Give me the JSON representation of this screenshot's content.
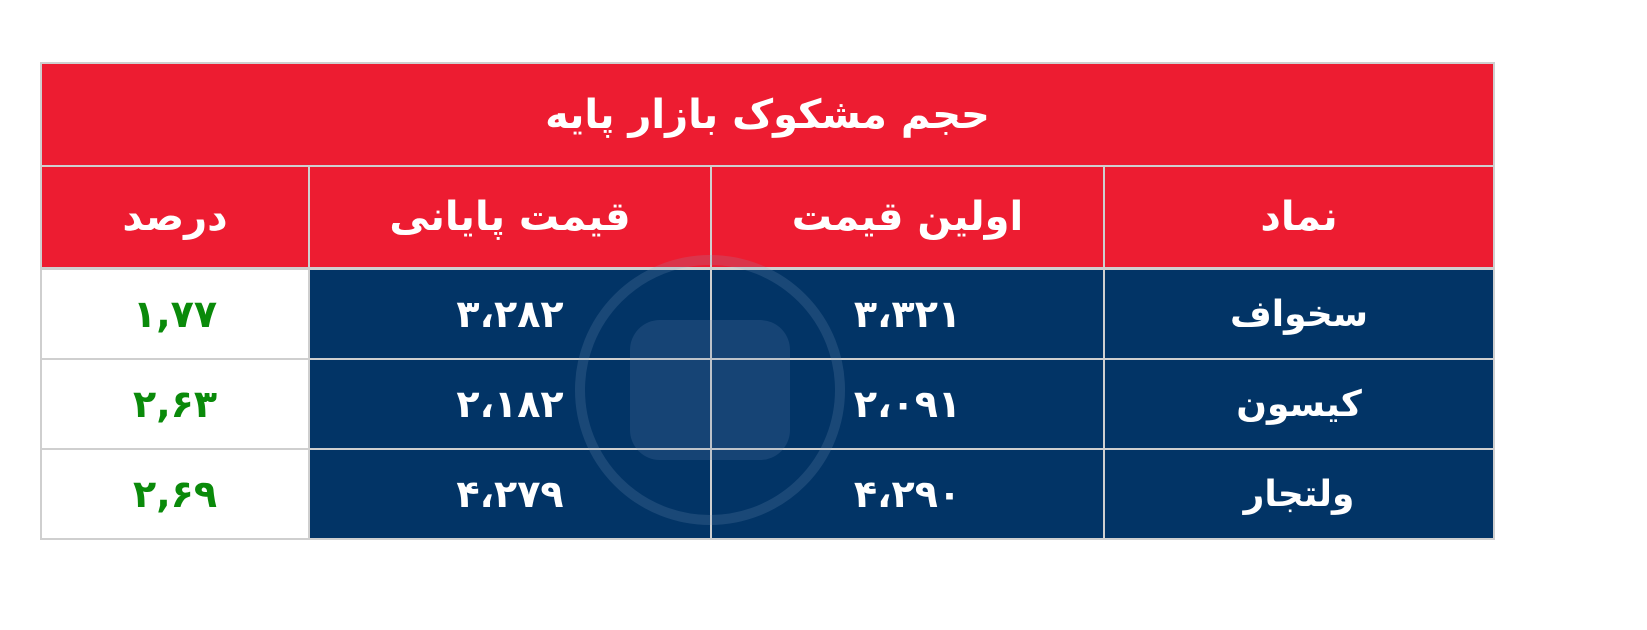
{
  "title": "حجم مشکوک بازار پایه",
  "columns": [
    "نماد",
    "اولین قیمت",
    "قیمت پایانی",
    "درصد"
  ],
  "rows": [
    {
      "symbol": "سخواف",
      "first_price": "۳،۳۲۱",
      "final_price": "۳،۲۸۲",
      "percent": "۱,۷۷"
    },
    {
      "symbol": "کیسون",
      "first_price": "۲،۰۹۱",
      "final_price": "۲،۱۸۲",
      "percent": "۲,۶۳"
    },
    {
      "symbol": "ولتجار",
      "first_price": "۴،۲۹۰",
      "final_price": "۴،۲۷۹",
      "percent": "۲,۶۹"
    }
  ],
  "colors": {
    "header": "#ED1C31",
    "body": "#023466",
    "percent_text": "#0A8A0A",
    "grid": "#CFCFCF"
  }
}
